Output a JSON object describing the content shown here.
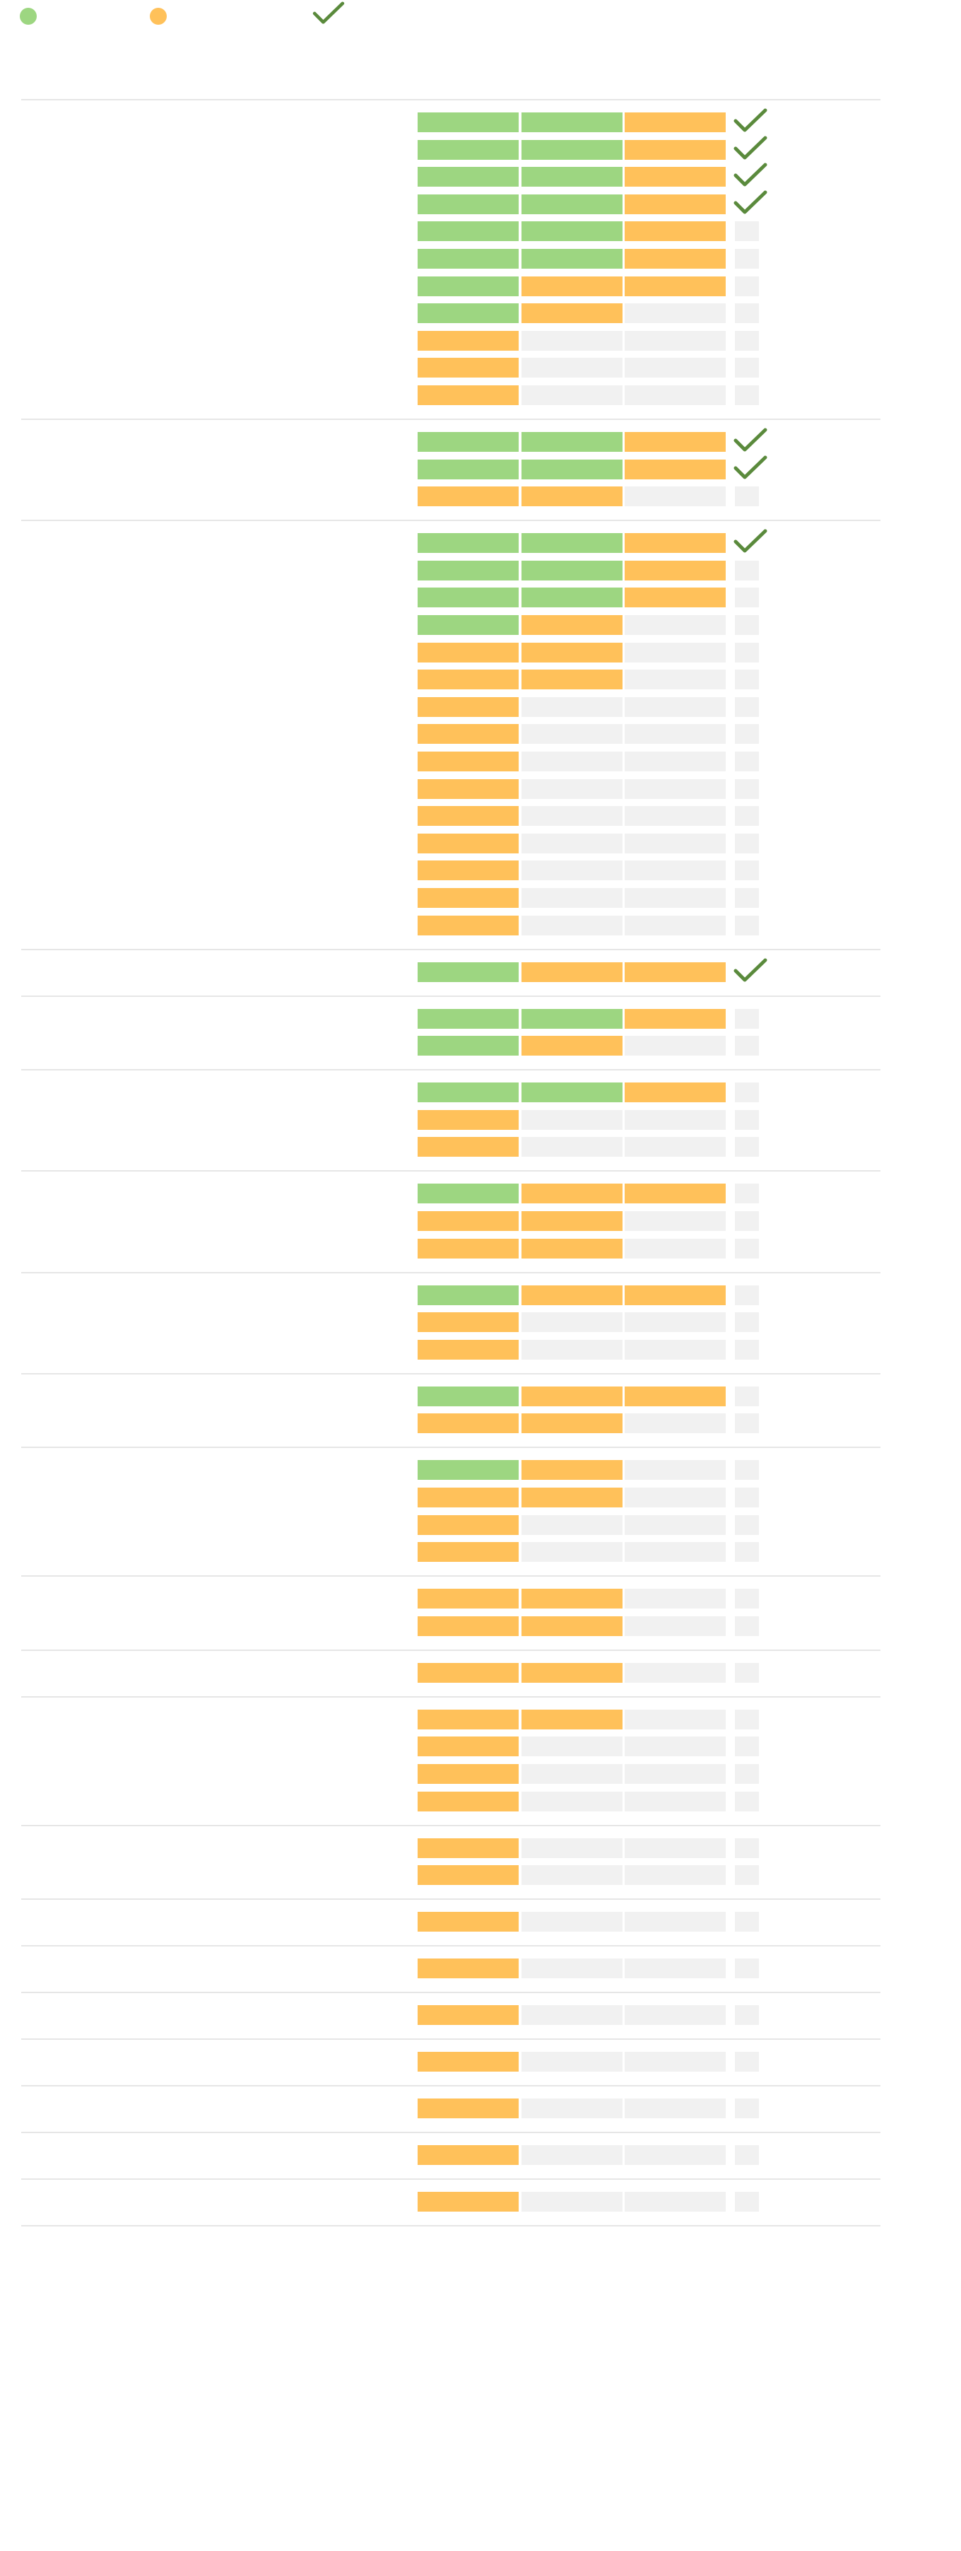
{
  "legend": [
    {
      "kind": "dot",
      "color": "#9dd681",
      "label": ""
    },
    {
      "kind": "dot",
      "color": "#ffc15a",
      "label": ""
    },
    {
      "kind": "check",
      "color": "#5a8a3c",
      "label": ""
    }
  ],
  "colors": {
    "green": "#9dd681",
    "orange": "#ffc15a",
    "empty": "#f1f1f1",
    "check": "#5a8a3c",
    "divider": "#e6e6e6"
  },
  "groups": [
    {
      "label": "",
      "rows": [
        {
          "cells": [
            "green",
            "green",
            "orange"
          ],
          "check": true
        },
        {
          "cells": [
            "green",
            "green",
            "orange"
          ],
          "check": true
        },
        {
          "cells": [
            "green",
            "green",
            "orange"
          ],
          "check": true
        },
        {
          "cells": [
            "green",
            "green",
            "orange"
          ],
          "check": true
        },
        {
          "cells": [
            "green",
            "green",
            "orange"
          ],
          "check": false
        },
        {
          "cells": [
            "green",
            "green",
            "orange"
          ],
          "check": false
        },
        {
          "cells": [
            "green",
            "orange",
            "orange"
          ],
          "check": false
        },
        {
          "cells": [
            "green",
            "orange",
            "empty"
          ],
          "check": false
        },
        {
          "cells": [
            "orange",
            "empty",
            "empty"
          ],
          "check": false
        },
        {
          "cells": [
            "orange",
            "empty",
            "empty"
          ],
          "check": false
        },
        {
          "cells": [
            "orange",
            "empty",
            "empty"
          ],
          "check": false
        }
      ]
    },
    {
      "label": "",
      "rows": [
        {
          "cells": [
            "green",
            "green",
            "orange"
          ],
          "check": true
        },
        {
          "cells": [
            "green",
            "green",
            "orange"
          ],
          "check": true
        },
        {
          "cells": [
            "orange",
            "orange",
            "empty"
          ],
          "check": false
        }
      ]
    },
    {
      "label": "",
      "rows": [
        {
          "cells": [
            "green",
            "green",
            "orange"
          ],
          "check": true
        },
        {
          "cells": [
            "green",
            "green",
            "orange"
          ],
          "check": false
        },
        {
          "cells": [
            "green",
            "green",
            "orange"
          ],
          "check": false
        },
        {
          "cells": [
            "green",
            "orange",
            "empty"
          ],
          "check": false
        },
        {
          "cells": [
            "orange",
            "orange",
            "empty"
          ],
          "check": false
        },
        {
          "cells": [
            "orange",
            "orange",
            "empty"
          ],
          "check": false
        },
        {
          "cells": [
            "orange",
            "empty",
            "empty"
          ],
          "check": false
        },
        {
          "cells": [
            "orange",
            "empty",
            "empty"
          ],
          "check": false
        },
        {
          "cells": [
            "orange",
            "empty",
            "empty"
          ],
          "check": false
        },
        {
          "cells": [
            "orange",
            "empty",
            "empty"
          ],
          "check": false
        },
        {
          "cells": [
            "orange",
            "empty",
            "empty"
          ],
          "check": false
        },
        {
          "cells": [
            "orange",
            "empty",
            "empty"
          ],
          "check": false
        },
        {
          "cells": [
            "orange",
            "empty",
            "empty"
          ],
          "check": false
        },
        {
          "cells": [
            "orange",
            "empty",
            "empty"
          ],
          "check": false
        },
        {
          "cells": [
            "orange",
            "empty",
            "empty"
          ],
          "check": false
        }
      ]
    },
    {
      "label": "",
      "rows": [
        {
          "cells": [
            "green",
            "orange",
            "orange"
          ],
          "check": true
        }
      ]
    },
    {
      "label": "",
      "rows": [
        {
          "cells": [
            "green",
            "green",
            "orange"
          ],
          "check": false
        },
        {
          "cells": [
            "green",
            "orange",
            "empty"
          ],
          "check": false
        }
      ]
    },
    {
      "label": "",
      "rows": [
        {
          "cells": [
            "green",
            "green",
            "orange"
          ],
          "check": false
        },
        {
          "cells": [
            "orange",
            "empty",
            "empty"
          ],
          "check": false
        },
        {
          "cells": [
            "orange",
            "empty",
            "empty"
          ],
          "check": false
        }
      ]
    },
    {
      "label": "",
      "rows": [
        {
          "cells": [
            "green",
            "orange",
            "orange"
          ],
          "check": false
        },
        {
          "cells": [
            "orange",
            "orange",
            "empty"
          ],
          "check": false
        },
        {
          "cells": [
            "orange",
            "orange",
            "empty"
          ],
          "check": false
        }
      ]
    },
    {
      "label": "",
      "rows": [
        {
          "cells": [
            "green",
            "orange",
            "orange"
          ],
          "check": false
        },
        {
          "cells": [
            "orange",
            "empty",
            "empty"
          ],
          "check": false
        },
        {
          "cells": [
            "orange",
            "empty",
            "empty"
          ],
          "check": false
        }
      ]
    },
    {
      "label": "",
      "rows": [
        {
          "cells": [
            "green",
            "orange",
            "orange"
          ],
          "check": false
        },
        {
          "cells": [
            "orange",
            "orange",
            "empty"
          ],
          "check": false
        }
      ]
    },
    {
      "label": "",
      "rows": [
        {
          "cells": [
            "green",
            "orange",
            "empty"
          ],
          "check": false
        },
        {
          "cells": [
            "orange",
            "orange",
            "empty"
          ],
          "check": false
        },
        {
          "cells": [
            "orange",
            "empty",
            "empty"
          ],
          "check": false
        },
        {
          "cells": [
            "orange",
            "empty",
            "empty"
          ],
          "check": false
        }
      ]
    },
    {
      "label": "",
      "rows": [
        {
          "cells": [
            "orange",
            "orange",
            "empty"
          ],
          "check": false
        },
        {
          "cells": [
            "orange",
            "orange",
            "empty"
          ],
          "check": false
        }
      ]
    },
    {
      "label": "",
      "rows": [
        {
          "cells": [
            "orange",
            "orange",
            "empty"
          ],
          "check": false
        }
      ]
    },
    {
      "label": "",
      "rows": [
        {
          "cells": [
            "orange",
            "orange",
            "empty"
          ],
          "check": false
        },
        {
          "cells": [
            "orange",
            "empty",
            "empty"
          ],
          "check": false
        },
        {
          "cells": [
            "orange",
            "empty",
            "empty"
          ],
          "check": false
        },
        {
          "cells": [
            "orange",
            "empty",
            "empty"
          ],
          "check": false
        }
      ]
    },
    {
      "label": "",
      "rows": [
        {
          "cells": [
            "orange",
            "empty",
            "empty"
          ],
          "check": false
        },
        {
          "cells": [
            "orange",
            "empty",
            "empty"
          ],
          "check": false
        }
      ]
    },
    {
      "label": "",
      "rows": [
        {
          "cells": [
            "orange",
            "empty",
            "empty"
          ],
          "check": false
        }
      ]
    },
    {
      "label": "",
      "rows": [
        {
          "cells": [
            "orange",
            "empty",
            "empty"
          ],
          "check": false
        }
      ]
    },
    {
      "label": "",
      "rows": [
        {
          "cells": [
            "orange",
            "empty",
            "empty"
          ],
          "check": false
        }
      ]
    },
    {
      "label": "",
      "rows": [
        {
          "cells": [
            "orange",
            "empty",
            "empty"
          ],
          "check": false
        }
      ]
    },
    {
      "label": "",
      "rows": [
        {
          "cells": [
            "orange",
            "empty",
            "empty"
          ],
          "check": false
        }
      ]
    },
    {
      "label": "",
      "rows": [
        {
          "cells": [
            "orange",
            "empty",
            "empty"
          ],
          "check": false
        }
      ]
    },
    {
      "label": "",
      "rows": [
        {
          "cells": [
            "orange",
            "empty",
            "empty"
          ],
          "check": false
        }
      ]
    }
  ]
}
